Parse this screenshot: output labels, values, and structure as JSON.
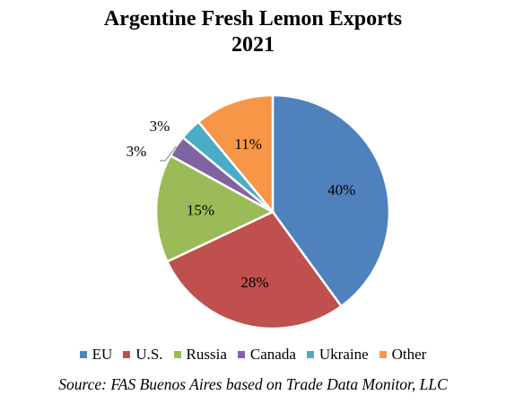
{
  "chart_data": {
    "type": "pie",
    "title": "Argentine Fresh Lemon Exports",
    "subtitle": "2021",
    "categories": [
      "EU",
      "U.S.",
      "Russia",
      "Canada",
      "Ukraine",
      "Other"
    ],
    "values": [
      40,
      28,
      15,
      3,
      3,
      11
    ],
    "labels": [
      "40%",
      "28%",
      "15%",
      "3%",
      "3%",
      "11%"
    ],
    "colors": [
      "#4f81bd",
      "#c0504d",
      "#9bbb59",
      "#8064a2",
      "#4bacc6",
      "#f79646"
    ],
    "legend_position": "bottom",
    "source": "Source: FAS Buenos Aires based on Trade Data Monitor, LLC"
  }
}
